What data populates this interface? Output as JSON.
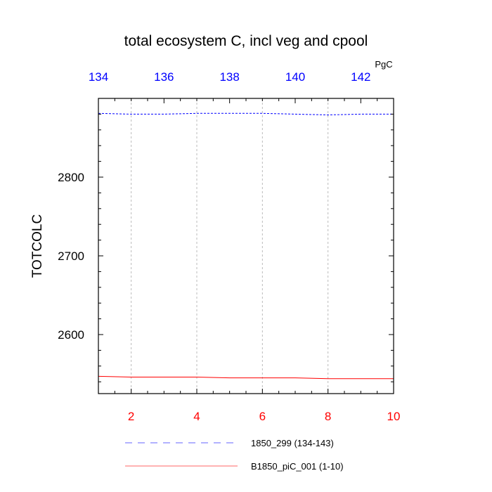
{
  "chart_data": {
    "type": "line",
    "title": "total ecosystem C, incl veg and cpool",
    "ylabel": "TOTCOLC",
    "units": "PgC",
    "ylim": [
      2525,
      2900
    ],
    "y_ticks": [
      2600,
      2700,
      2800
    ],
    "bottom_axis": {
      "range": [
        1,
        10
      ],
      "ticks": [
        2,
        4,
        6,
        8,
        10
      ],
      "color": "#ff0000"
    },
    "top_axis": {
      "range": [
        134,
        143
      ],
      "ticks": [
        134,
        136,
        138,
        140,
        142
      ],
      "color": "#0000ff"
    },
    "grid": true,
    "legend_position": "bottom",
    "series": [
      {
        "name": "1850_299 (134-143)",
        "axis": "top",
        "color": "#0000ff",
        "dash": "dashed",
        "x": [
          134,
          135,
          136,
          137,
          138,
          139,
          140,
          141,
          142,
          143
        ],
        "values": [
          2881,
          2880,
          2880,
          2881,
          2881,
          2881,
          2880,
          2879,
          2880,
          2880
        ]
      },
      {
        "name": "B1850_piC_001 (1-10)",
        "axis": "bottom",
        "color": "#ff0000",
        "dash": "solid",
        "x": [
          1,
          2,
          3,
          4,
          5,
          6,
          7,
          8,
          9,
          10
        ],
        "values": [
          2547,
          2546,
          2546,
          2546,
          2545,
          2545,
          2545,
          2544,
          2544,
          2544
        ]
      }
    ]
  }
}
